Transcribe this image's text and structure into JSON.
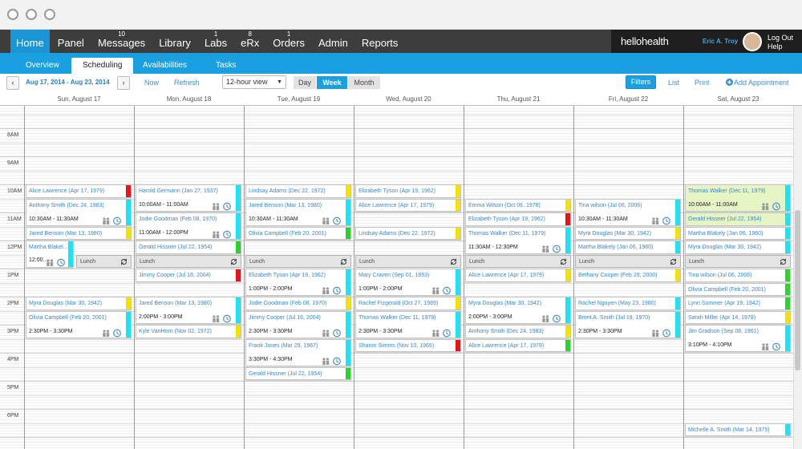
{
  "nav": {
    "items": [
      {
        "label": "Home",
        "active": true
      },
      {
        "label": "Panel"
      },
      {
        "label": "Messages",
        "badge": 10
      },
      {
        "label": "Library"
      },
      {
        "label": "Labs",
        "badge": 1
      },
      {
        "label": "eRx",
        "badge": 8
      },
      {
        "label": "Orders",
        "badge": 1
      },
      {
        "label": "Admin"
      },
      {
        "label": "Reports"
      }
    ],
    "brand": "hellohealth",
    "user": "Eric A. Troy",
    "logout": "Log Out",
    "help": "Help"
  },
  "subnav": {
    "tabs": [
      {
        "label": "Overview"
      },
      {
        "label": "Scheduling",
        "active": true
      },
      {
        "label": "Availabilities"
      },
      {
        "label": "Tasks"
      }
    ]
  },
  "toolbar": {
    "range": "Aug 17, 2014 - Aug 23, 2014",
    "now": "Now",
    "refresh": "Refresh",
    "view": "12-hour view",
    "modes": [
      {
        "label": "Day"
      },
      {
        "label": "Week",
        "active": true
      },
      {
        "label": "Month"
      }
    ],
    "filters": "Filters",
    "list": "List",
    "print": "Print",
    "add": "Add Appointment"
  },
  "calendar": {
    "hours": [
      "8AM",
      "9AM",
      "10AM",
      "11AM",
      "12PM",
      "1PM",
      "2PM",
      "3PM",
      "4PM",
      "5PM",
      "6PM"
    ],
    "lunch": "Lunch",
    "days": [
      {
        "header": "Sun, August 17",
        "appointments": [
          {
            "name": "Alice Lawrence (Apr 17, 1979)",
            "color": "#e8141b"
          },
          {
            "name": "Anthony Smith (Dec 24, 1983)",
            "time": "10:30AM - 11:30AM",
            "color": "#1de3f2"
          },
          {
            "name": "Jared Benson (Mar 13, 1980)",
            "color": "#f2e400"
          },
          {
            "name": "Martha Blakel...",
            "time": "12:00...",
            "color": "#1de3f2"
          },
          {
            "name": "Myra Douglas (Mar 30, 1942)",
            "color": "#f2e400"
          },
          {
            "name": "Olivia Campbell (Feb 20, 2001)",
            "time": "2:30PM - 3:30PM",
            "color": "#1de3f2"
          }
        ]
      },
      {
        "header": "Mon, August 18",
        "appointments": [
          {
            "name": "Harold Germann (Jan 27, 1937)",
            "time": "10:00AM - 11:00AM",
            "color": "#1de3f2"
          },
          {
            "name": "Jodie Goodman (Feb 08, 1970)",
            "time": "11:00AM - 12:00PM",
            "color": "#1de3f2"
          },
          {
            "name": "Gerald Hissner (Jul 22, 1954)",
            "color": "#2fd12f"
          },
          {
            "name": "Jimmy Cooper (Jul 16, 2004)",
            "color": "#e8141b"
          },
          {
            "name": "Jared Benson (Mar 13, 1980)",
            "time": "2:00PM - 3:00PM",
            "color": "#1de3f2"
          },
          {
            "name": "Kyle VanHorn (Nov 02, 1972)",
            "color": "#f2e400"
          }
        ]
      },
      {
        "header": "Tue, August 19",
        "appointments": [
          {
            "name": "Lindsay Adams (Dec 22, 1972)",
            "color": "#f2e400"
          },
          {
            "name": "Jared Benson (Mar 13, 1980)",
            "time": "10:30AM - 11:30AM",
            "color": "#1de3f2"
          },
          {
            "name": "Olivia Campbell (Feb 20, 2001)",
            "color": "#2fd12f"
          },
          {
            "name": "Elizabeth Tyson (Apr 19, 1962)",
            "time": "1:00PM - 2:00PM",
            "color": "#1de3f2"
          },
          {
            "name": "Jodie Goodman (Feb 08, 1970)",
            "color": "#f2e400"
          },
          {
            "name": "Jimmy Cooper (Jul 16, 2004)",
            "time": "2:30PM - 3:30PM",
            "color": "#1de3f2"
          },
          {
            "name": "Frank Jones (Mar 29, 1967)",
            "time": "3:30PM - 4:30PM",
            "color": "#1de3f2"
          },
          {
            "name": "Gerald Hissner (Jul 22, 1954)",
            "color": "#2fd12f"
          }
        ]
      },
      {
        "header": "Wed, August 20",
        "appointments": [
          {
            "name": "Elizabeth Tyson (Apr 19, 1962)",
            "color": "#f2e400"
          },
          {
            "name": "Alice Lawrence (Apr 17, 1979)",
            "color": "#f2e400"
          },
          {
            "name": "Lindsay Adams (Dec 22, 1972)",
            "color": "#f2e400"
          },
          {
            "name": "Mary Craven (Sep 01, 1953)",
            "time": "1:00PM - 2:00PM",
            "color": "#1de3f2"
          },
          {
            "name": "Rachel Fizgerald (Oct 27, 1989)",
            "color": "#f2e400"
          },
          {
            "name": "Thomas Walker (Dec 11, 1979)",
            "time": "2:30PM - 3:30PM",
            "color": "#1de3f2"
          },
          {
            "name": "Sharon Simms (Nov 10, 1965)",
            "color": "#e8141b"
          }
        ]
      },
      {
        "header": "Thu, August 21",
        "appointments": [
          {
            "name": "Emma Wilson (Oct 06, 1978)",
            "color": "#f2e400"
          },
          {
            "name": "Elizabeth Tyson (Apr 19, 1962)",
            "color": "#e8141b"
          },
          {
            "name": "Thomas Walker (Dec 11, 1979)",
            "time": "11:30AM - 12:30PM",
            "color": "#1de3f2"
          },
          {
            "name": "Alice Lawrence (Apr 17, 1979)",
            "color": "#f2e400"
          },
          {
            "name": "Myra Douglas (Mar 30, 1942)",
            "time": "2:00PM - 3:00PM",
            "color": "#1de3f2"
          },
          {
            "name": "Anthony Smith (Dec 24, 1983)",
            "color": "#f2e400"
          },
          {
            "name": "Alice Lawrence (Apr 17, 1979)",
            "color": "#2fd12f"
          }
        ]
      },
      {
        "header": "Fri, August 22",
        "appointments": [
          {
            "name": "Tina wilson (Jul 06, 2006)",
            "time": "10:30AM - 11:30AM",
            "color": "#1de3f2"
          },
          {
            "name": "Myra Douglas (Mar 30, 1942)",
            "color": "#f2e400"
          },
          {
            "name": "Martha Blakely (Jan 06, 1960)",
            "color": "#1de3f2"
          },
          {
            "name": "Bethany Cooper (Feb 29, 2000)",
            "color": "#f2e400"
          },
          {
            "name": "Rachel Nguyen (May 23, 1980)",
            "color": "#1de3f2"
          },
          {
            "name": "Brent A. Smith (Jul 18, 1970)",
            "time": "2:30PM - 3:30PM",
            "color": "#1de3f2"
          }
        ]
      },
      {
        "header": "Sat, August 23",
        "appointments": [
          {
            "name": "Thomas Walker (Dec 11, 1979)",
            "time": "10:00AM - 11:00AM",
            "color": "#1de3f2",
            "highlight": true
          },
          {
            "name": "Gerald Hissner (Jul 22, 1954)",
            "color": "#1de3f2",
            "highlight": true
          },
          {
            "name": "Martha Blakely (Jan 06, 1960)",
            "color": "#1de3f2"
          },
          {
            "name": "Myra Douglas (Mar 30, 1942)",
            "color": "#1de3f2"
          },
          {
            "name": "Tina wilson (Jul 06, 2006)",
            "color": "#2fd12f"
          },
          {
            "name": "Olivia Campbell (Feb 20, 2001)",
            "color": "#2fd12f"
          },
          {
            "name": "Lynn Sommer (Apr 19, 1942)",
            "color": "#2fd12f"
          },
          {
            "name": "Sarah Miller (Apr 14, 1978)",
            "color": "#f2e400"
          },
          {
            "name": "Jim Gradson (Sep 08, 1961)",
            "time": "3:10PM - 4:10PM",
            "color": "#1de3f2"
          },
          {
            "name": "Michelle A. Smith (Mar 14, 1975)",
            "color": "#1de3f2"
          }
        ]
      }
    ]
  }
}
